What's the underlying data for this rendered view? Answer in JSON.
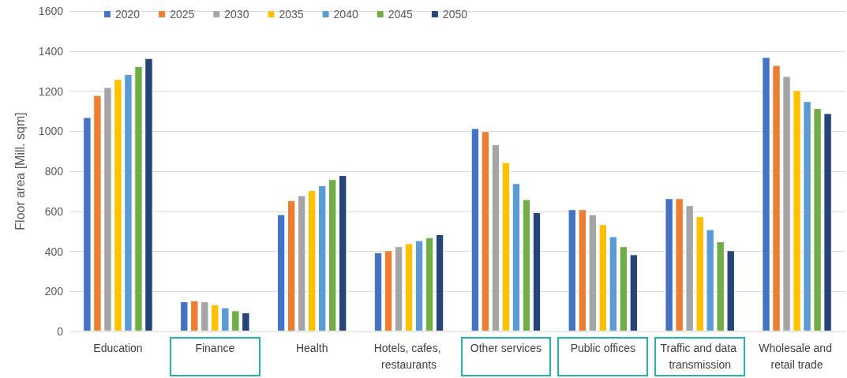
{
  "chart_data": {
    "type": "bar",
    "ylabel": "Floor area [Mill. sqm]",
    "categories": [
      "Education",
      "Finance",
      "Health",
      "Hotels, cafes, restaurants",
      "Other services",
      "Public offices",
      "Traffic and data transmission",
      "Wholesale and retail trade"
    ],
    "series": [
      {
        "name": "2020",
        "color": "#4472c4",
        "values": [
          1070,
          150,
          585,
          395,
          1015,
          610,
          665,
          1370
        ]
      },
      {
        "name": "2025",
        "color": "#ed7d31",
        "values": [
          1180,
          155,
          655,
          405,
          1000,
          610,
          665,
          1330
        ]
      },
      {
        "name": "2030",
        "color": "#a5a5a5",
        "values": [
          1220,
          150,
          680,
          425,
          935,
          585,
          630,
          1275
        ]
      },
      {
        "name": "2035",
        "color": "#ffc000",
        "values": [
          1260,
          135,
          705,
          440,
          845,
          535,
          575,
          1205
        ]
      },
      {
        "name": "2040",
        "color": "#5b9bd5",
        "values": [
          1285,
          120,
          730,
          455,
          740,
          475,
          510,
          1150
        ]
      },
      {
        "name": "2045",
        "color": "#70ad47",
        "values": [
          1325,
          105,
          760,
          470,
          660,
          425,
          450,
          1115
        ]
      },
      {
        "name": "2050",
        "color": "#264478",
        "values": [
          1365,
          95,
          780,
          485,
          595,
          385,
          405,
          1090
        ]
      }
    ],
    "ylim": [
      0,
      1600
    ],
    "yticks": [
      0,
      200,
      400,
      600,
      800,
      1000,
      1200,
      1400,
      1600
    ],
    "grid": "y",
    "legend": "top left"
  }
}
